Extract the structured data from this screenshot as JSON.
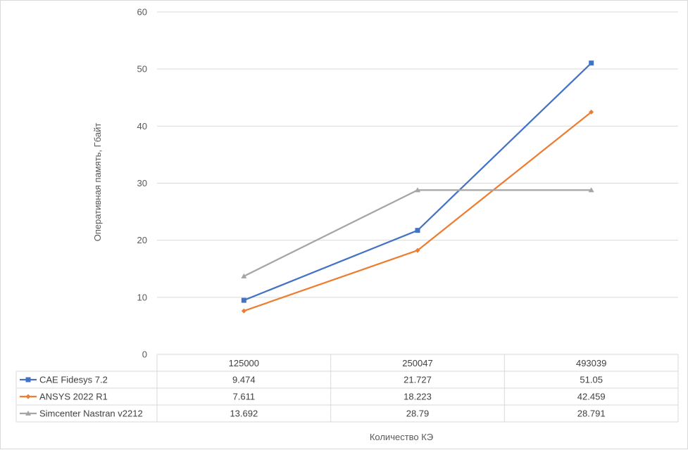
{
  "chart_data": {
    "type": "line",
    "title": "",
    "xlabel": "Количество КЭ",
    "ylabel": "Оперативная память, Гбайт",
    "categories": [
      "125000",
      "250047",
      "493039"
    ],
    "ylim": [
      0,
      60
    ],
    "yticks": [
      0,
      10,
      20,
      30,
      40,
      50,
      60
    ],
    "grid": true,
    "legend": "data-table",
    "series": [
      {
        "name": "CAE Fidesys 7.2",
        "values": [
          9.474,
          21.727,
          51.05
        ],
        "labels": [
          "9.474",
          "21.727",
          "51.05"
        ],
        "color": "#4472c4",
        "marker": "square"
      },
      {
        "name": "ANSYS 2022 R1",
        "values": [
          7.611,
          18.223,
          42.459
        ],
        "labels": [
          "7.611",
          "18.223",
          "42.459"
        ],
        "color": "#ed7d31",
        "marker": "diamond"
      },
      {
        "name": "Simcenter Nastran v2212",
        "values": [
          13.692,
          28.79,
          28.791
        ],
        "labels": [
          "13.692",
          "28.79",
          "28.791"
        ],
        "color": "#a5a5a5",
        "marker": "triangle"
      }
    ]
  }
}
